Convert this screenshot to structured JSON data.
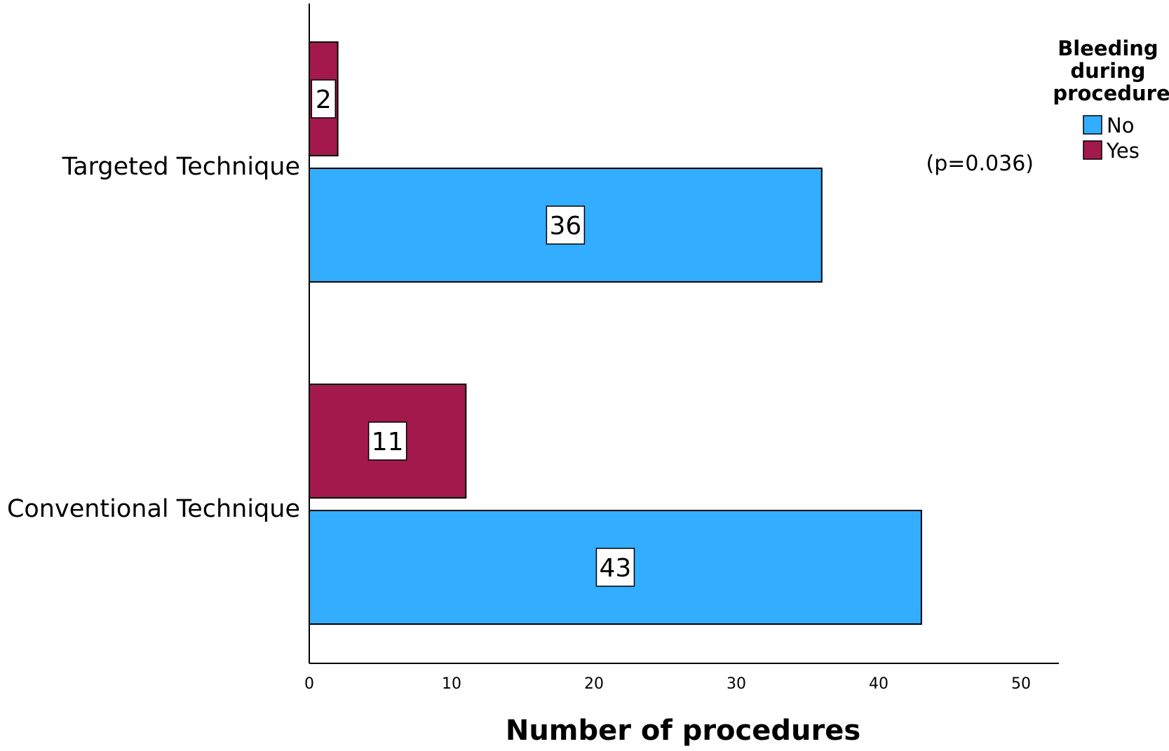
{
  "chart_data": {
    "type": "bar",
    "orientation": "horizontal",
    "categories": [
      "Targeted Technique",
      "Conventional Technique"
    ],
    "series": [
      {
        "name": "No",
        "values": [
          36,
          43
        ],
        "color": "#33adff"
      },
      {
        "name": "Yes",
        "values": [
          2,
          11
        ],
        "color": "#a3194b"
      }
    ],
    "title": "",
    "xlabel": "Number of procedures",
    "ylabel": "",
    "xlim": [
      0,
      52
    ],
    "xticks": [
      0,
      10,
      20,
      30,
      40,
      50
    ],
    "grid": false,
    "legend": {
      "title": "Bleeding during procedure",
      "title_lines": [
        "Bleeding",
        "during",
        "procedure"
      ],
      "position": "top-right"
    },
    "annotation": "(p=0.036)",
    "data_labels": true
  }
}
